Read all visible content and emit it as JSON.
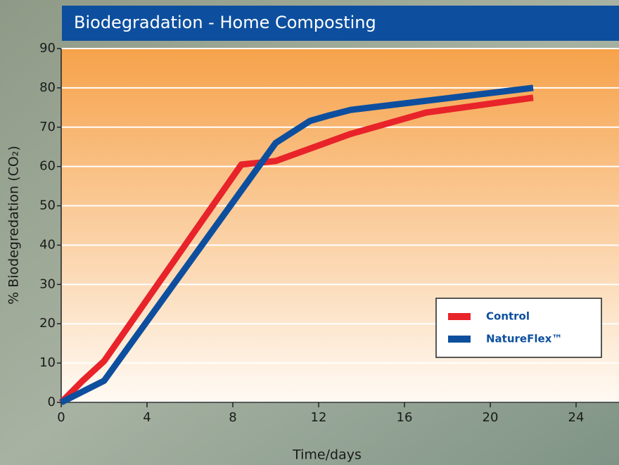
{
  "chart_data": {
    "type": "line",
    "title": "Biodegradation - Home Composting",
    "x_label": "Time/days",
    "y_label": "% Biodegredation (CO₂)",
    "xlim": [
      0,
      26
    ],
    "ylim": [
      0,
      90
    ],
    "xticks": [
      0,
      4,
      8,
      12,
      16,
      20,
      24
    ],
    "yticks": [
      0,
      10,
      20,
      30,
      40,
      50,
      60,
      70,
      80,
      90
    ],
    "grid": true,
    "legend_position": "lower right",
    "series": [
      {
        "name": "Control",
        "color": "#e8232a",
        "x": [
          0,
          1,
          2,
          8.4,
          10,
          13.5,
          17,
          22
        ],
        "values": [
          0,
          5.5,
          10.5,
          60.5,
          61.4,
          68.3,
          73.7,
          77.5
        ]
      },
      {
        "name": "NatureFlex™",
        "color": "#0d4f9e",
        "x": [
          0,
          2,
          10,
          11.6,
          12.5,
          13.5,
          22
        ],
        "values": [
          0,
          5.5,
          66,
          71.6,
          73,
          74.4,
          80
        ]
      }
    ]
  }
}
